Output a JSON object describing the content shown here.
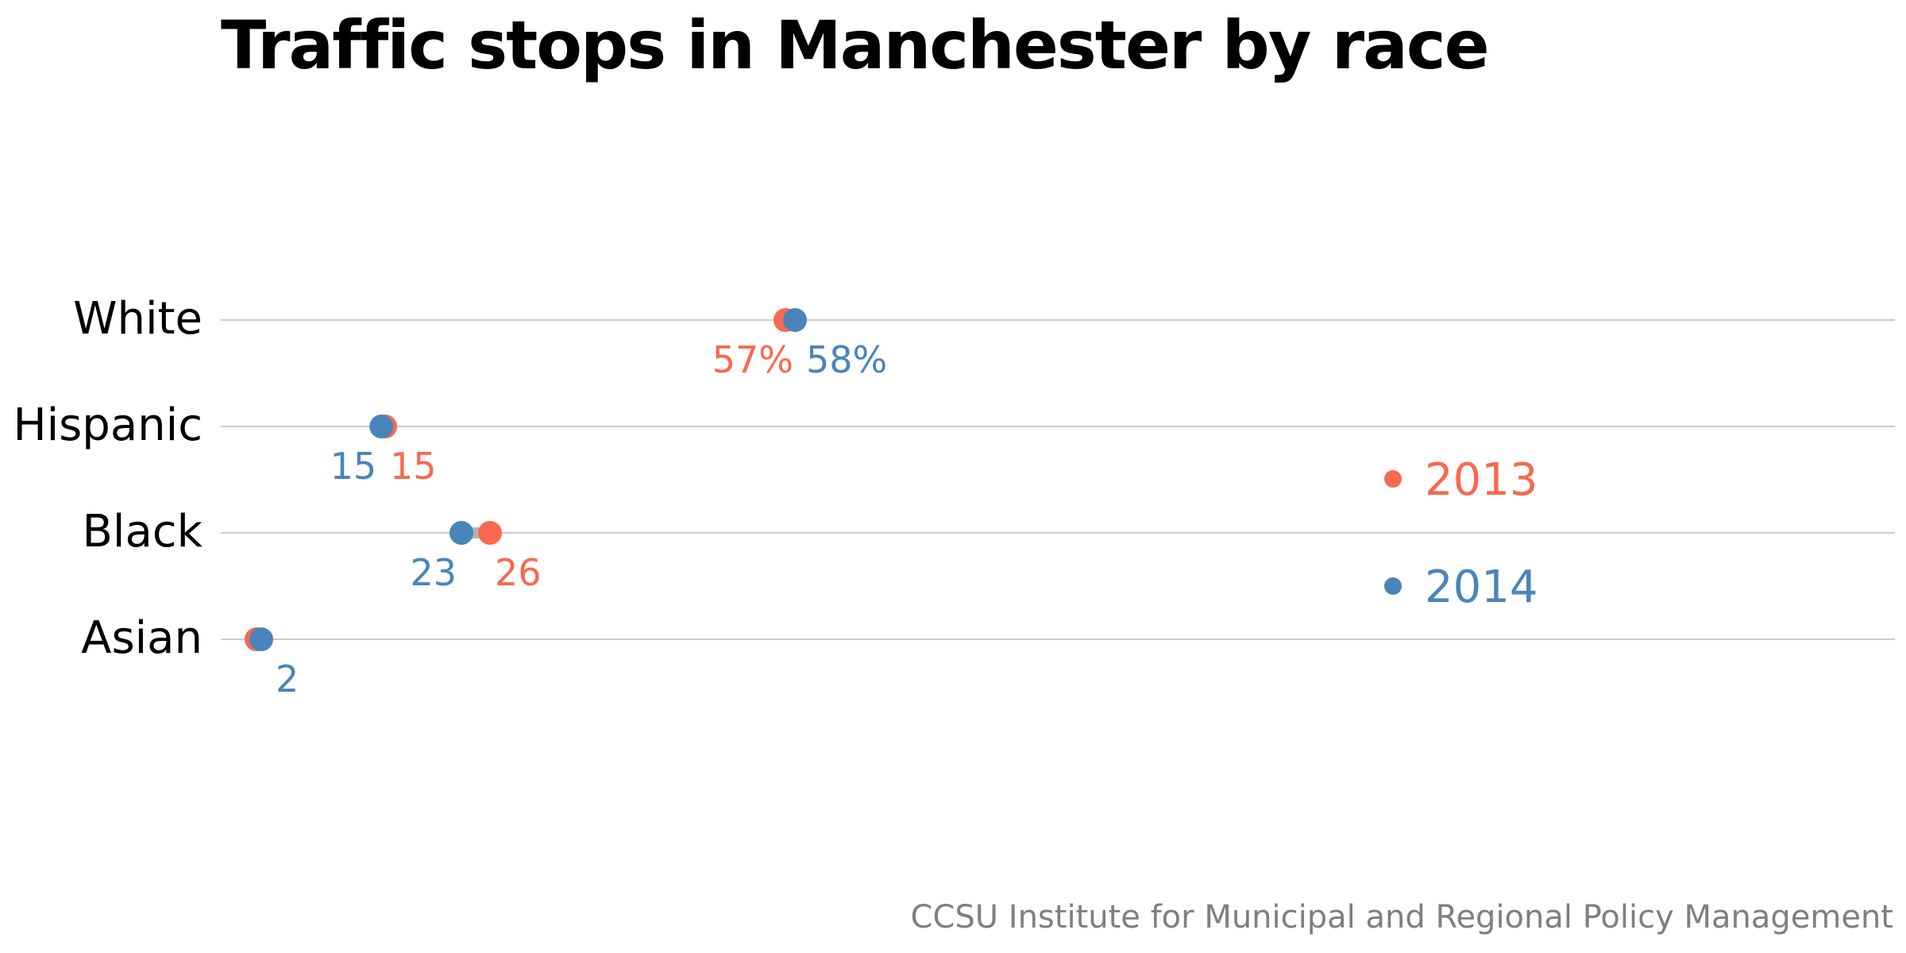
{
  "title": "Traffic stops in Manchester by race",
  "source": "CCSU Institute for Municipal and Regional Policy Management",
  "colors": {
    "series_2013": "#f8694f",
    "series_2014": "#4a85b9",
    "connector": "#b3b3b3",
    "gridline": "#cccccc",
    "category_text": "#000000",
    "source_text": "#7f7f7f"
  },
  "chart_data": {
    "type": "dumbbell",
    "title": "Traffic stops in Manchester by race",
    "categories": [
      "White",
      "Hispanic",
      "Black",
      "Asian"
    ],
    "x_unit": "percent of traffic stops",
    "xlim": [
      0,
      100
    ],
    "series": [
      {
        "name": "2013",
        "color": "#f8694f",
        "values": [
          57,
          15,
          26,
          1.5
        ],
        "labels": [
          "57%",
          "15",
          "26",
          ""
        ]
      },
      {
        "name": "2014",
        "color": "#4a85b9",
        "values": [
          58,
          14.6,
          23,
          2
        ],
        "labels": [
          "58%",
          "15",
          "23",
          "2"
        ]
      }
    ],
    "legend": {
      "position": "right",
      "entries": [
        "2013",
        "2014"
      ]
    },
    "grid": true
  }
}
